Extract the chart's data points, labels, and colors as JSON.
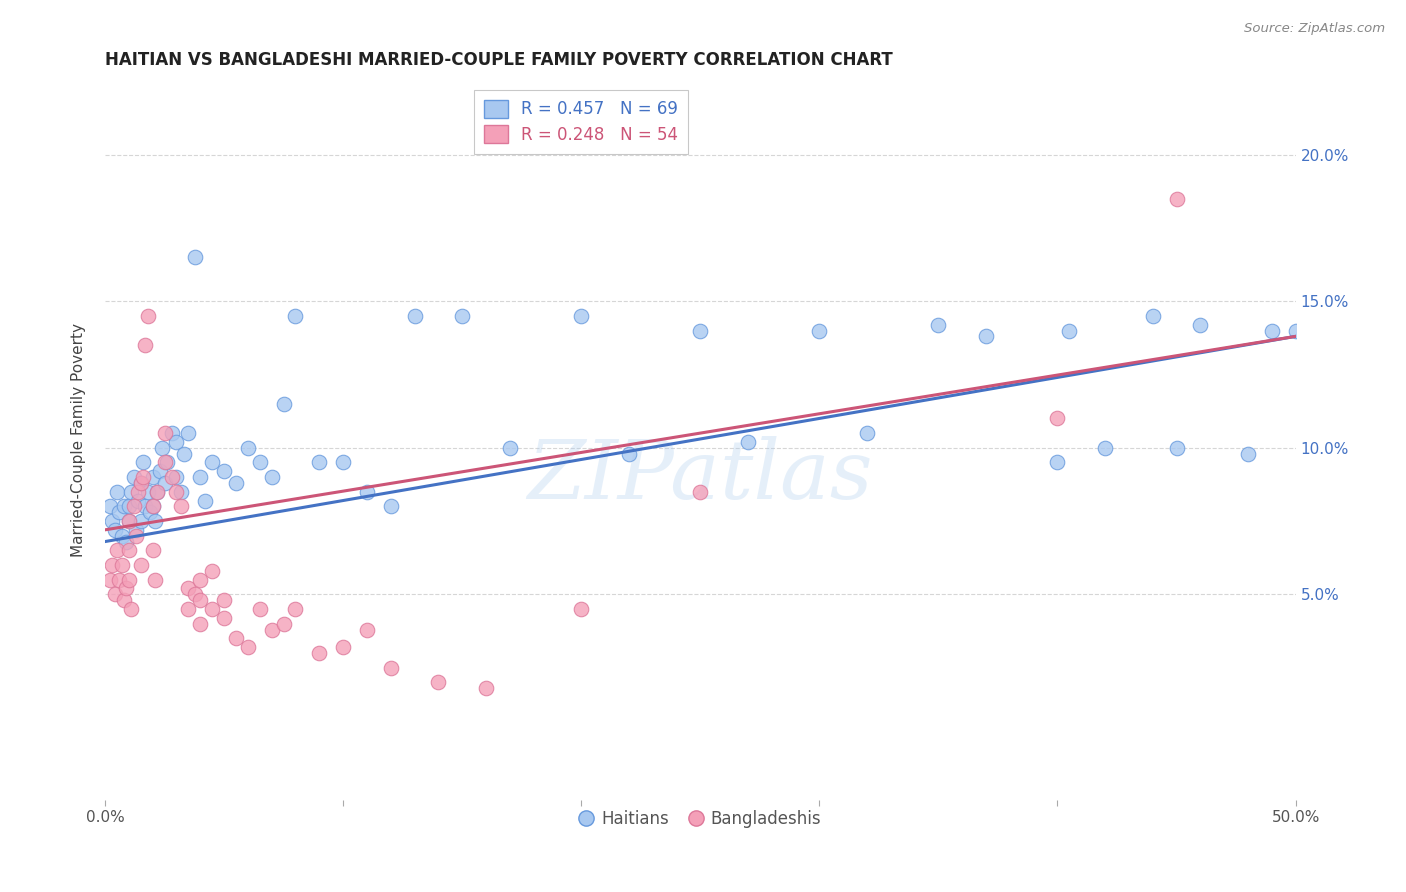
{
  "title": "HAITIAN VS BANGLADESHI MARRIED-COUPLE FAMILY POVERTY CORRELATION CHART",
  "source": "Source: ZipAtlas.com",
  "ylabel": "Married-Couple Family Poverty",
  "xlim": [
    0.0,
    50.0
  ],
  "ylim": [
    -2.0,
    22.5
  ],
  "watermark": "ZIPatlas",
  "legend_haiti_r": "R = 0.457",
  "legend_haiti_n": "N = 69",
  "legend_bangla_r": "R = 0.248",
  "legend_bangla_n": "N = 54",
  "haiti_color": "#A8C8F0",
  "bangla_color": "#F4A0B8",
  "haiti_edge_color": "#6699DD",
  "bangla_edge_color": "#DD7799",
  "haiti_line_color": "#4472C4",
  "bangla_line_color": "#CC5577",
  "haiti_reg_x0": 0,
  "haiti_reg_y0": 6.8,
  "haiti_reg_x1": 50,
  "haiti_reg_y1": 13.8,
  "bangla_reg_x0": 0,
  "bangla_reg_y0": 7.2,
  "bangla_reg_x1": 50,
  "bangla_reg_y1": 13.8,
  "haiti_scatter": [
    [
      0.2,
      8.0
    ],
    [
      0.3,
      7.5
    ],
    [
      0.4,
      7.2
    ],
    [
      0.5,
      8.5
    ],
    [
      0.6,
      7.8
    ],
    [
      0.7,
      7.0
    ],
    [
      0.8,
      8.0
    ],
    [
      0.9,
      6.8
    ],
    [
      1.0,
      7.5
    ],
    [
      1.0,
      8.0
    ],
    [
      1.1,
      8.5
    ],
    [
      1.2,
      9.0
    ],
    [
      1.3,
      7.2
    ],
    [
      1.4,
      8.2
    ],
    [
      1.5,
      7.5
    ],
    [
      1.5,
      8.8
    ],
    [
      1.6,
      9.5
    ],
    [
      1.7,
      8.0
    ],
    [
      1.8,
      8.5
    ],
    [
      1.9,
      7.8
    ],
    [
      2.0,
      8.0
    ],
    [
      2.0,
      9.0
    ],
    [
      2.1,
      7.5
    ],
    [
      2.2,
      8.5
    ],
    [
      2.3,
      9.2
    ],
    [
      2.4,
      10.0
    ],
    [
      2.5,
      8.8
    ],
    [
      2.6,
      9.5
    ],
    [
      2.8,
      10.5
    ],
    [
      3.0,
      9.0
    ],
    [
      3.0,
      10.2
    ],
    [
      3.2,
      8.5
    ],
    [
      3.3,
      9.8
    ],
    [
      3.5,
      10.5
    ],
    [
      3.8,
      16.5
    ],
    [
      4.0,
      9.0
    ],
    [
      4.2,
      8.2
    ],
    [
      4.5,
      9.5
    ],
    [
      5.0,
      9.2
    ],
    [
      5.5,
      8.8
    ],
    [
      6.0,
      10.0
    ],
    [
      6.5,
      9.5
    ],
    [
      7.0,
      9.0
    ],
    [
      7.5,
      11.5
    ],
    [
      8.0,
      14.5
    ],
    [
      9.0,
      9.5
    ],
    [
      10.0,
      9.5
    ],
    [
      11.0,
      8.5
    ],
    [
      12.0,
      8.0
    ],
    [
      13.0,
      14.5
    ],
    [
      15.0,
      14.5
    ],
    [
      17.0,
      10.0
    ],
    [
      20.0,
      14.5
    ],
    [
      22.0,
      9.8
    ],
    [
      25.0,
      14.0
    ],
    [
      27.0,
      10.2
    ],
    [
      30.0,
      14.0
    ],
    [
      32.0,
      10.5
    ],
    [
      35.0,
      14.2
    ],
    [
      37.0,
      13.8
    ],
    [
      40.0,
      9.5
    ],
    [
      40.5,
      14.0
    ],
    [
      42.0,
      10.0
    ],
    [
      44.0,
      14.5
    ],
    [
      45.0,
      10.0
    ],
    [
      46.0,
      14.2
    ],
    [
      48.0,
      9.8
    ],
    [
      49.0,
      14.0
    ],
    [
      50.0,
      14.0
    ]
  ],
  "bangla_scatter": [
    [
      0.2,
      5.5
    ],
    [
      0.3,
      6.0
    ],
    [
      0.4,
      5.0
    ],
    [
      0.5,
      6.5
    ],
    [
      0.6,
      5.5
    ],
    [
      0.7,
      6.0
    ],
    [
      0.8,
      4.8
    ],
    [
      0.9,
      5.2
    ],
    [
      1.0,
      5.5
    ],
    [
      1.0,
      6.5
    ],
    [
      1.0,
      7.5
    ],
    [
      1.1,
      4.5
    ],
    [
      1.2,
      8.0
    ],
    [
      1.3,
      7.0
    ],
    [
      1.4,
      8.5
    ],
    [
      1.5,
      6.0
    ],
    [
      1.5,
      8.8
    ],
    [
      1.6,
      9.0
    ],
    [
      1.7,
      13.5
    ],
    [
      1.8,
      14.5
    ],
    [
      2.0,
      6.5
    ],
    [
      2.0,
      8.0
    ],
    [
      2.1,
      5.5
    ],
    [
      2.2,
      8.5
    ],
    [
      2.5,
      9.5
    ],
    [
      2.5,
      10.5
    ],
    [
      2.8,
      9.0
    ],
    [
      3.0,
      8.5
    ],
    [
      3.2,
      8.0
    ],
    [
      3.5,
      4.5
    ],
    [
      3.5,
      5.2
    ],
    [
      3.8,
      5.0
    ],
    [
      4.0,
      4.0
    ],
    [
      4.0,
      4.8
    ],
    [
      4.0,
      5.5
    ],
    [
      4.5,
      4.5
    ],
    [
      4.5,
      5.8
    ],
    [
      5.0,
      4.2
    ],
    [
      5.0,
      4.8
    ],
    [
      5.5,
      3.5
    ],
    [
      6.0,
      3.2
    ],
    [
      6.5,
      4.5
    ],
    [
      7.0,
      3.8
    ],
    [
      7.5,
      4.0
    ],
    [
      8.0,
      4.5
    ],
    [
      9.0,
      3.0
    ],
    [
      10.0,
      3.2
    ],
    [
      11.0,
      3.8
    ],
    [
      12.0,
      2.5
    ],
    [
      14.0,
      2.0
    ],
    [
      16.0,
      1.8
    ],
    [
      20.0,
      4.5
    ],
    [
      25.0,
      8.5
    ],
    [
      40.0,
      11.0
    ],
    [
      45.0,
      18.5
    ]
  ]
}
